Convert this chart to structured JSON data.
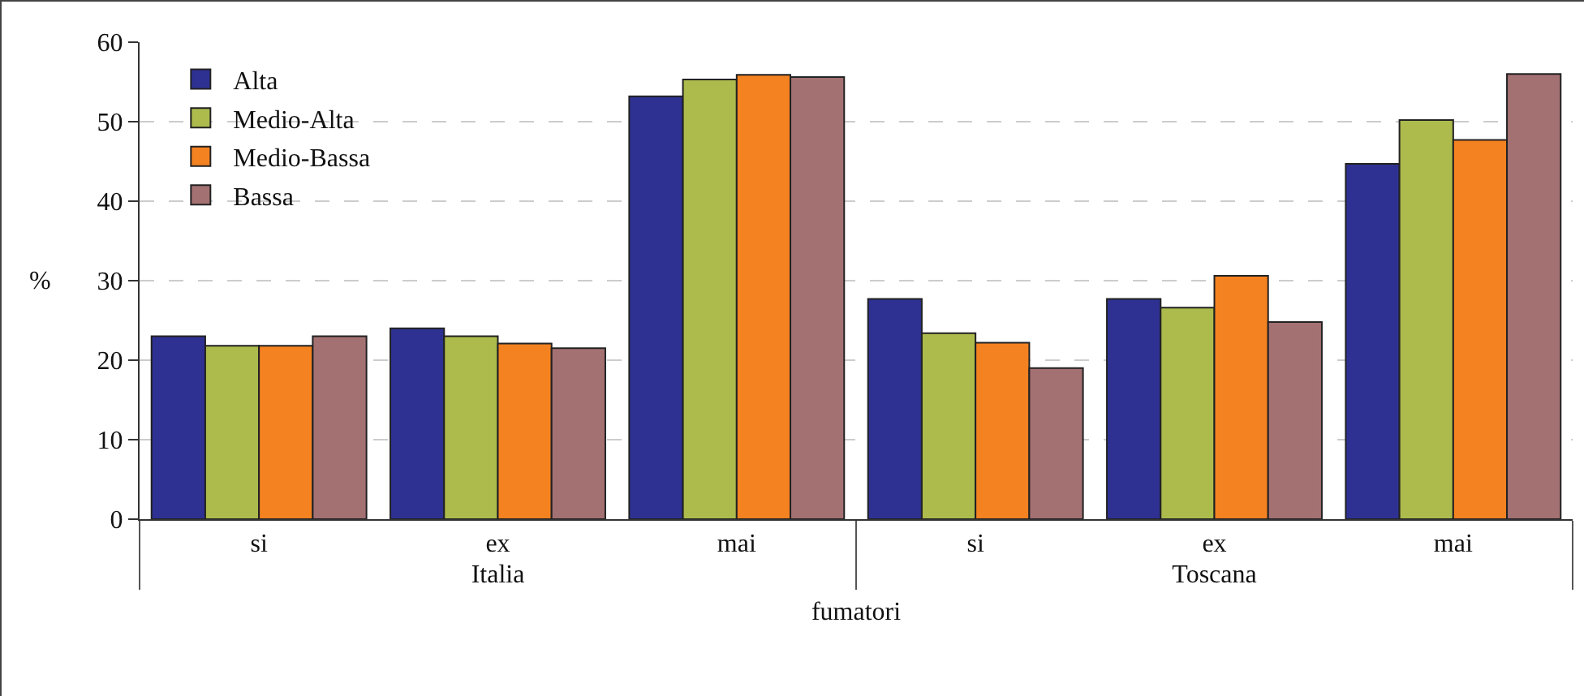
{
  "chart_data": {
    "type": "bar",
    "xlabel": "fumatori",
    "ylabel": "%",
    "categories": [
      "si",
      "ex",
      "mai",
      "si",
      "ex",
      "mai"
    ],
    "annotations": [
      "Italia",
      "Toscana"
    ],
    "series": [
      {
        "name": "Alta",
        "color": "#2e3192",
        "values": [
          23.0,
          24.0,
          53.2,
          27.7,
          27.7,
          44.7
        ]
      },
      {
        "name": "Medio-Alta",
        "color": "#adbb4d",
        "values": [
          21.8,
          23.0,
          55.3,
          23.4,
          26.6,
          50.2
        ]
      },
      {
        "name": "Medio-Bassa",
        "color": "#f58220",
        "values": [
          21.8,
          22.1,
          55.9,
          22.2,
          30.6,
          47.7
        ]
      },
      {
        "name": "Bassa",
        "color": "#a47173",
        "values": [
          23.0,
          21.5,
          55.6,
          19.0,
          24.8,
          56.0
        ]
      }
    ],
    "ylim": [
      0,
      60
    ],
    "yticks": [
      0,
      10,
      20,
      30,
      40,
      50,
      60
    ],
    "grid": "y",
    "legend": "top left"
  }
}
